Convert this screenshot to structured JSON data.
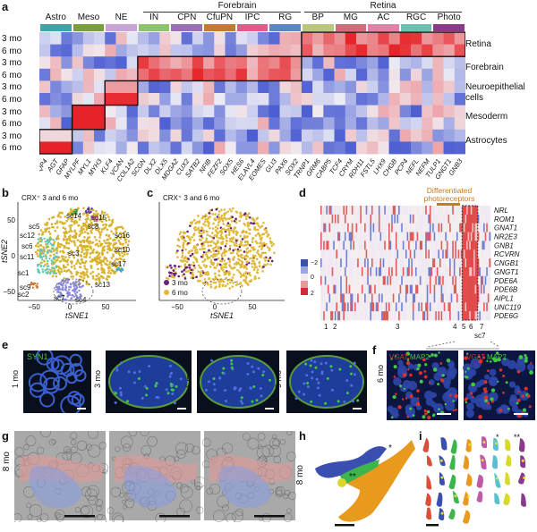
{
  "panel_letters": [
    "a",
    "b",
    "c",
    "d",
    "e",
    "f",
    "g",
    "h",
    "i"
  ],
  "panel_a": {
    "group_headers": [
      {
        "label": "Forebrain"
      },
      {
        "label": "Retina"
      }
    ],
    "cell_types": [
      {
        "label": "Astro",
        "color": "#3aa6a6"
      },
      {
        "label": "Meso",
        "color": "#7a9e3a"
      },
      {
        "label": "NE",
        "color": "#c7a3d6"
      },
      {
        "label": "IN",
        "color": "#8dc46b"
      },
      {
        "label": "CPN",
        "color": "#9b6fb5"
      },
      {
        "label": "CfuPN",
        "color": "#c47a2b"
      },
      {
        "label": "IPC",
        "color": "#e05a8a"
      },
      {
        "label": "RG",
        "color": "#5a86c8"
      },
      {
        "label": "BP",
        "color": "#b9c77a"
      },
      {
        "label": "MG",
        "color": "#d66a7a"
      },
      {
        "label": "AC",
        "color": "#e57fa8"
      },
      {
        "label": "RGC",
        "color": "#6cc0b0"
      },
      {
        "label": "Photo",
        "color": "#8b3a8b"
      }
    ],
    "row_labels": [
      "3 mo",
      "6 mo",
      "3 mo",
      "6 mo",
      "3 mo",
      "6 mo",
      "3 mo",
      "6 mo",
      "3 mo",
      "6 mo"
    ],
    "region_labels": [
      "Retina",
      "Forebrain",
      "Neuroepithelial\ncells",
      "Mesoderm",
      "Astrocytes"
    ],
    "genes": [
      "AQP4",
      "AGT",
      "GFAP",
      "MYLPF",
      "MYL1",
      "MYH3",
      "KLF4",
      "VCAN",
      "COL1A2",
      "SCGN",
      "DLX2",
      "DLX5",
      "MDGA2",
      "CUX2",
      "SATB2",
      "NFIB",
      "FEZF2",
      "SOX5",
      "HES6",
      "ELAVL4",
      "EOMES",
      "GLI3",
      "PAX6",
      "SOX2",
      "TRNP1",
      "GRM6",
      "CABP5",
      "TCF4",
      "CRYM",
      "RDH11",
      "FSTL5",
      "LHX9",
      "CHGB",
      "PCP4",
      "NEFL",
      "NEFM",
      "TULP1",
      "GNGT1",
      "GNB3"
    ]
  },
  "panel_b": {
    "title": "CRX⁺ 3 and 6 mo",
    "xlabel": "tSNE1",
    "ylabel": "tSNE2",
    "xticks": [
      "−50",
      "0",
      "50"
    ],
    "yticks": [
      "50",
      "0",
      "−50"
    ],
    "cluster_labels": [
      "sc5",
      "sc14",
      "sc15",
      "sc8",
      "sc12",
      "sc6",
      "sc16",
      "sc11",
      "sc3",
      "sc10",
      "sc1",
      "sc9",
      "sc17",
      "sc2",
      "sc7",
      "sc13",
      "sc4"
    ]
  },
  "panel_c": {
    "title": "CRX⁺ 3 and 6 mo",
    "xlabel": "tSNE1",
    "xticks": [
      "−50",
      "0",
      "50"
    ],
    "legend": [
      {
        "label": "3 mo",
        "color": "#6a1f7a"
      },
      {
        "label": "6 mo",
        "color": "#e0b83a"
      }
    ]
  },
  "panel_d": {
    "annotation": "Differentiated\nphotoreceptors",
    "colorbar_ticks": [
      "−2",
      "0",
      "2"
    ],
    "genes": [
      "NRL",
      "ROM1",
      "GNAT1",
      "NR2E3",
      "GNB1",
      "RCVRN",
      "CNGB1",
      "GNGT1",
      "PDE6A",
      "PDE6B",
      "AIPL1",
      "UNC119",
      "PDE6G"
    ],
    "cluster_numbers": [
      "1",
      "2",
      "3",
      "4",
      "5",
      "6",
      "7"
    ],
    "inset_label": "sc7",
    "bottom_numbers": [
      "8",
      "13",
      "17"
    ]
  },
  "panel_e": {
    "stain": "SYN1",
    "stain_color": "#3ec93e",
    "time_labels": [
      "1 mo",
      "3 mo",
      "6 mo",
      "9 mo"
    ]
  },
  "panel_f": {
    "stains": [
      {
        "label": "VGAT",
        "color": "#e0302a"
      },
      {
        "label": "MAP2",
        "color": "#3ec93e"
      }
    ],
    "time_label": "6 mo"
  },
  "panel_g": {
    "time_label": "8 mo"
  },
  "panel_h": {
    "time_label": "8 mo",
    "marks": [
      "*",
      "**"
    ]
  },
  "panel_i": {
    "marks": [
      "*",
      "**"
    ]
  }
}
